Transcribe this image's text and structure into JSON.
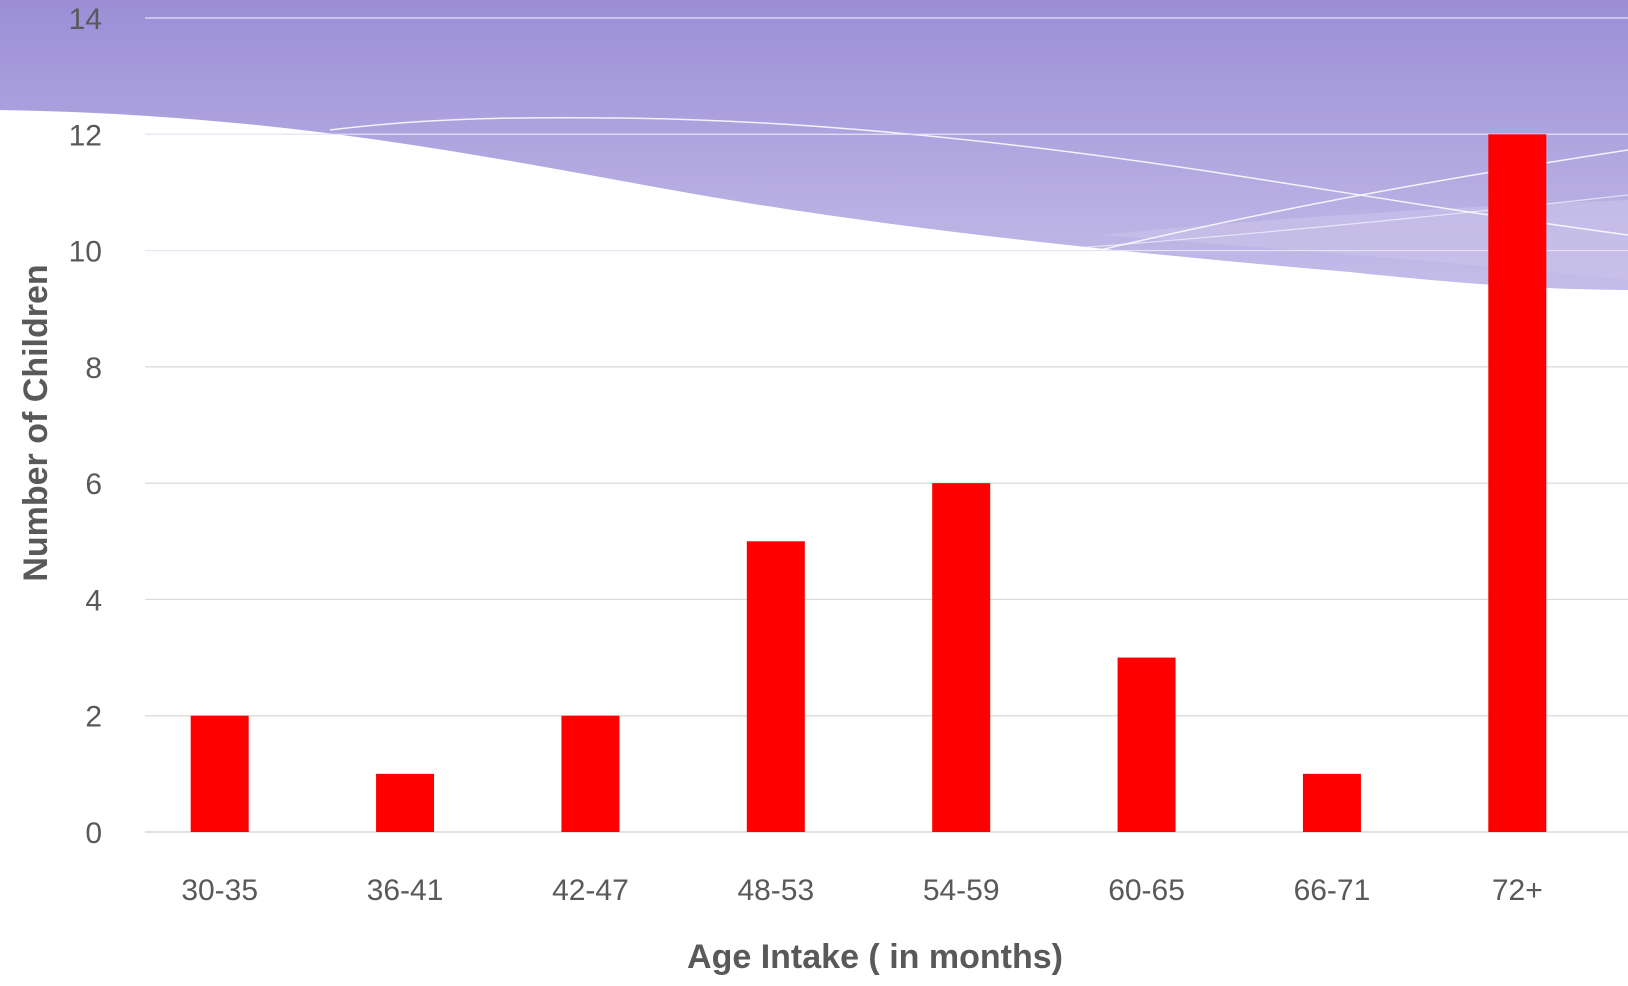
{
  "chart_data": {
    "type": "bar",
    "title": "",
    "xlabel": "Age Intake ( in months)",
    "ylabel": "Number of Children",
    "categories": [
      "30-35",
      "36-41",
      "42-47",
      "48-53",
      "54-59",
      "60-65",
      "66-71",
      "72+"
    ],
    "values": [
      2,
      1,
      2,
      5,
      6,
      3,
      1,
      12
    ],
    "ylim": [
      0,
      14
    ],
    "yticks": [
      "0",
      "2",
      "4",
      "6",
      "8",
      "10",
      "12",
      "14"
    ],
    "grid": true,
    "legend": "none",
    "bar_color": "#FF0000",
    "gridline_color": "#D9D9D9",
    "text_color": "#595959",
    "decoration_color": "#9B8ED6"
  }
}
